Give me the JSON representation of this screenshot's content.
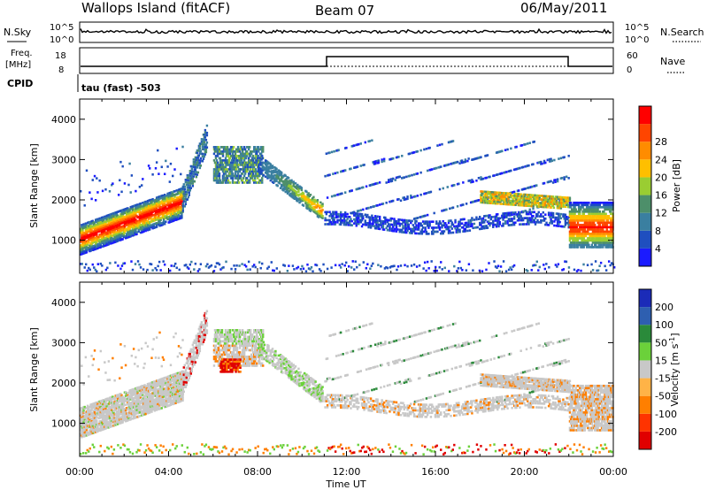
{
  "header": {
    "station": "Wallops Island (fitACF)",
    "beam": "Beam 07",
    "date": "06/May/2011"
  },
  "top_panels": {
    "nsky_label": "N.Sky",
    "nsky_ticks": [
      "10^5",
      "10^0"
    ],
    "nsearch_label": "N.Search",
    "nsearch_ticks": [
      "10^5",
      "10^0"
    ],
    "freq_label": "Freq.",
    "freq_unit": "[MHz]",
    "freq_ticks": [
      "18",
      "8"
    ],
    "nave_label": "Nave",
    "nave_ticks": [
      "60",
      "0"
    ],
    "cpid_label": "CPID",
    "cpid_text": "tau (fast) -503"
  },
  "chart_data": [
    {
      "type": "heatmap",
      "ylabel": "Slant Range [km]",
      "y_ticks": [
        "1000",
        "2000",
        "3000",
        "4000"
      ],
      "ylim": [
        180,
        4500
      ],
      "x_ticks": [
        "00:00",
        "04:00",
        "08:00",
        "12:00",
        "16:00",
        "20:00",
        "00:00"
      ],
      "xlim_hours": [
        0,
        24
      ],
      "colorbar": {
        "label": "Power [dB]",
        "ticks": [
          "4",
          "8",
          "12",
          "16",
          "20",
          "24",
          "28"
        ],
        "colors": [
          "#1b1bff",
          "#1f4fbf",
          "#3a7fa0",
          "#4d8f6a",
          "#9acd32",
          "#ffbf00",
          "#ff8c00",
          "#ff4500",
          "#ff0000"
        ]
      }
    },
    {
      "type": "heatmap",
      "ylabel": "Slant Range [km]",
      "y_ticks": [
        "1000",
        "2000",
        "3000",
        "4000"
      ],
      "ylim": [
        180,
        4500
      ],
      "x_ticks": [
        "00:00",
        "04:00",
        "08:00",
        "12:00",
        "16:00",
        "20:00",
        "00:00"
      ],
      "xlim_hours": [
        0,
        24
      ],
      "xlabel": "Time UT",
      "colorbar": {
        "label_main": "Velocity [m s",
        "label_sup": "-1",
        "label_end": "]",
        "ticks": [
          "200",
          "100",
          "50",
          "15",
          "-15",
          "-50",
          "-100",
          "-200"
        ],
        "colors": [
          "#1b2bb8",
          "#2e5fb0",
          "#2a8a3a",
          "#6bd13a",
          "#c8c8c8",
          "#ffb347",
          "#ff7f00",
          "#ff3300",
          "#e00000"
        ]
      }
    }
  ]
}
